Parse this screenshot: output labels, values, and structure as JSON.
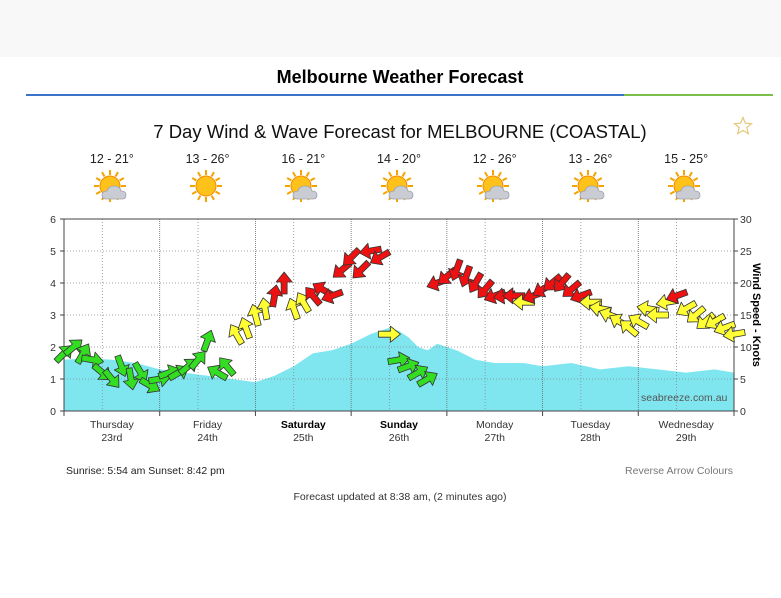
{
  "page_title": "Melbourne Weather Forecast",
  "chart_data": {
    "type": "area",
    "title": "7 Day Wind & Wave Forecast for MELBOURNE (COASTAL)",
    "ylabel_right": "Wind Speed - Knots",
    "ylim_left": [
      0,
      6
    ],
    "ylim_right": [
      0,
      30
    ],
    "yticks_left": [
      "0",
      "1",
      "2",
      "3",
      "4",
      "5",
      "6"
    ],
    "yticks_right": [
      "0",
      "5",
      "10",
      "15",
      "20",
      "25",
      "30"
    ],
    "grid": true,
    "days": [
      {
        "day": "Thursday",
        "date": "23rd",
        "temp": "12 - 21°",
        "icon": "sun-cloud-icon",
        "bold": false
      },
      {
        "day": "Friday",
        "date": "24th",
        "temp": "13 - 26°",
        "icon": "sun-icon",
        "bold": false
      },
      {
        "day": "Saturday",
        "date": "25th",
        "temp": "16 - 21°",
        "icon": "sun-cloud-icon",
        "bold": true
      },
      {
        "day": "Sunday",
        "date": "26th",
        "temp": "14 - 20°",
        "icon": "sun-cloud-icon",
        "bold": true
      },
      {
        "day": "Monday",
        "date": "27th",
        "temp": "12 - 26°",
        "icon": "sun-cloud-icon",
        "bold": false
      },
      {
        "day": "Tuesday",
        "date": "28th",
        "temp": "13 - 26°",
        "icon": "sun-cloud-icon",
        "bold": false
      },
      {
        "day": "Wednesday",
        "date": "29th",
        "temp": "15 - 25°",
        "icon": "sun-cloud-icon",
        "bold": false
      }
    ],
    "wave_height_m": {
      "x_days": [
        0,
        0.25,
        0.5,
        0.75,
        1.0,
        1.25,
        1.5,
        1.75,
        2.0,
        2.2,
        2.4,
        2.6,
        2.8,
        3.0,
        3.2,
        3.4,
        3.5,
        3.6,
        3.7,
        3.8,
        3.9,
        4.0,
        4.1,
        4.3,
        4.5,
        4.8,
        5.0,
        5.3,
        5.6,
        5.9,
        6.2,
        6.5,
        6.8,
        7.0
      ],
      "values": [
        1.6,
        1.65,
        1.6,
        1.5,
        1.3,
        1.2,
        1.1,
        1.0,
        0.9,
        1.1,
        1.4,
        1.8,
        1.9,
        2.1,
        2.4,
        2.6,
        2.5,
        2.3,
        2.0,
        1.9,
        2.1,
        2.0,
        1.9,
        1.6,
        1.5,
        1.5,
        1.4,
        1.5,
        1.3,
        1.4,
        1.3,
        1.2,
        1.3,
        1.2
      ]
    },
    "wind_arrows": {
      "x_days": [
        0.0,
        0.1,
        0.2,
        0.3,
        0.4,
        0.5,
        0.6,
        0.7,
        0.8,
        0.9,
        1.0,
        1.1,
        1.2,
        1.3,
        1.4,
        1.5,
        1.6,
        1.7,
        1.8,
        1.9,
        2.0,
        2.1,
        2.2,
        2.3,
        2.4,
        2.5,
        2.6,
        2.7,
        2.8,
        2.9,
        3.0,
        3.1,
        3.2,
        3.3,
        3.4,
        3.5,
        3.6,
        3.7,
        3.8,
        3.9,
        4.0,
        4.1,
        4.2,
        4.3,
        4.4,
        4.5,
        4.6,
        4.7,
        4.8,
        4.9,
        5.0,
        5.1,
        5.2,
        5.3,
        5.4,
        5.5,
        5.6,
        5.7,
        5.8,
        5.9,
        6.0,
        6.1,
        6.2,
        6.3,
        6.4,
        6.5,
        6.6,
        6.7,
        6.8,
        6.9,
        7.0
      ],
      "speed_knots": [
        9,
        10,
        9,
        8,
        6,
        5,
        7,
        5,
        6,
        4,
        5,
        6,
        6,
        7,
        8,
        11,
        6,
        7,
        12,
        13,
        15,
        16,
        18,
        20,
        16,
        17,
        18,
        19,
        18,
        22,
        24,
        22,
        25,
        24,
        12,
        8,
        7,
        6,
        5,
        20,
        21,
        22,
        21,
        20,
        19,
        18,
        18,
        18,
        17,
        18,
        19,
        20,
        20,
        19,
        18,
        17,
        16,
        15,
        14,
        13,
        14,
        16,
        15,
        17,
        18,
        16,
        15,
        14,
        14,
        13,
        12
      ],
      "direction_deg": [
        45,
        50,
        30,
        100,
        130,
        140,
        160,
        170,
        150,
        120,
        80,
        70,
        60,
        50,
        40,
        20,
        300,
        320,
        330,
        340,
        345,
        350,
        10,
        0,
        340,
        330,
        320,
        300,
        250,
        230,
        225,
        225,
        260,
        240,
        90,
        80,
        70,
        60,
        60,
        250,
        230,
        200,
        200,
        210,
        220,
        250,
        260,
        270,
        270,
        250,
        240,
        230,
        220,
        230,
        250,
        270,
        280,
        290,
        300,
        310,
        300,
        280,
        270,
        260,
        250,
        240,
        230,
        230,
        240,
        250,
        260
      ]
    },
    "watermark": "seabreeze.com.au"
  },
  "info": {
    "sunrise_sunset": "Sunrise: 5:54 am  Sunset: 8:42 pm",
    "reverse_link": "Reverse Arrow Colours",
    "updated": "Forecast updated at 8:38 am, (2 minutes ago)"
  },
  "colors": {
    "wave_fill": "#7fe6f0",
    "wind_low": "#33dd22",
    "wind_mid": "#ffff33",
    "wind_high": "#ee1111"
  }
}
